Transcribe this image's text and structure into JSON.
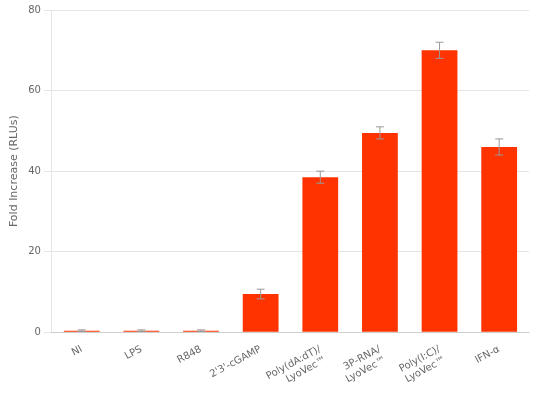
{
  "chart_data": {
    "type": "bar",
    "ylabel": "Fold Increase (RLUs)",
    "categories": [
      "NI",
      "LPS",
      "R848",
      "2'3'-cGAMP",
      "Poly(dA:dT)/\nLyoVec™",
      "3P-RNA/\nLyoVec™",
      "Poly(I:C)/\nLyoVec™",
      "IFN-α"
    ],
    "values": [
      0.4,
      0.4,
      0.4,
      9.5,
      38.5,
      49.5,
      70.0,
      46.0
    ],
    "errors": [
      0.2,
      0.2,
      0.2,
      1.2,
      1.5,
      1.5,
      2.0,
      2.0
    ],
    "color": "#FF3300",
    "ylim": [
      0,
      80
    ],
    "yticks": [
      0,
      20,
      40,
      60,
      80
    ],
    "grid": true
  }
}
